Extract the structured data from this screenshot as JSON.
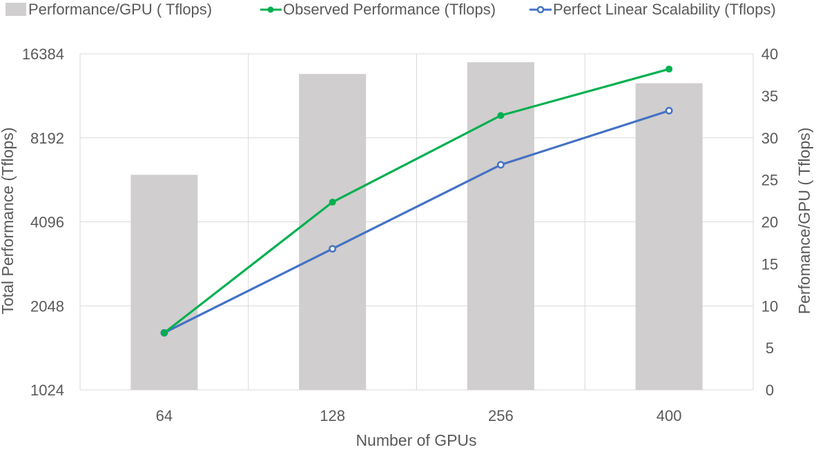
{
  "chart_data": {
    "type": "bar",
    "categories": [
      "64",
      "128",
      "256",
      "400"
    ],
    "xlabel": "Number of GPUs",
    "ylabel": "Total Performance (Tflops)",
    "y2label": "Perfomance/GPU ( Tflops)",
    "ylim": [
      1024,
      16384
    ],
    "y_scale": "log2",
    "y_ticks": [
      "1024",
      "2048",
      "4096",
      "8192",
      "16384"
    ],
    "y2lim": [
      0,
      40
    ],
    "y2_ticks": [
      "0",
      "5",
      "10",
      "15",
      "20",
      "25",
      "30",
      "35",
      "40"
    ],
    "grid": true,
    "legend_position": "top",
    "series": [
      {
        "name": "Performance/GPU ( Tflops)",
        "type": "bar",
        "axis": "right",
        "color": "#d0cece",
        "values": [
          25.6,
          37.6,
          39.0,
          36.5
        ]
      },
      {
        "name": "Observed Performance (Tflops)",
        "type": "line",
        "axis": "left",
        "color": "#00b050",
        "values": [
          1640,
          4820,
          9850,
          14450
        ]
      },
      {
        "name": "Perfect Linear Scalability (Tflops)",
        "type": "line",
        "axis": "left",
        "color": "#4472c4",
        "values": [
          1640,
          3280,
          6560,
          10250
        ]
      }
    ]
  }
}
